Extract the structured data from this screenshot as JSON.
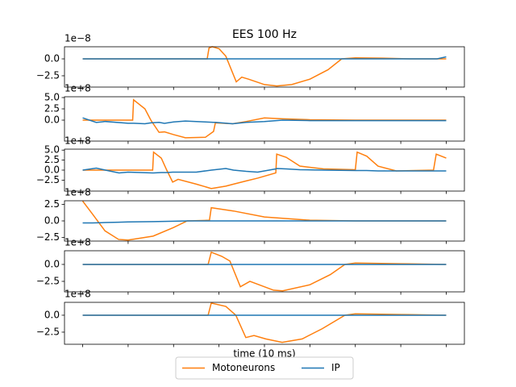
{
  "chart_data": [
    {
      "type": "line",
      "title": "EES 100 Hz",
      "offset_label": "1e−8",
      "x": [
        0,
        5,
        10,
        15,
        20,
        25,
        27.4,
        27.8,
        28.5,
        30,
        31.5,
        33.8,
        35,
        36.5,
        40,
        42.7,
        46,
        50,
        54,
        57,
        60,
        66,
        72,
        78,
        80
      ],
      "series": [
        {
          "name": "Motoneurons",
          "color": "#ff7f0e",
          "values": [
            0,
            0,
            0,
            0,
            0,
            0,
            0,
            1.6,
            1.8,
            1.5,
            0.4,
            -3.4,
            -2.7,
            -3.0,
            -3.8,
            -4.0,
            -3.8,
            -3.0,
            -1.6,
            0,
            0.15,
            0.1,
            0,
            0,
            0
          ]
        },
        {
          "name": "IP",
          "color": "#1f77b4",
          "values": [
            0,
            0,
            0,
            0,
            0,
            0,
            0,
            0,
            0,
            0,
            0,
            0,
            0,
            0,
            0,
            0,
            0,
            0,
            0,
            0,
            0,
            0,
            0,
            0,
            0.3
          ]
        }
      ],
      "xlim": [
        -4,
        84
      ],
      "xticks": [
        0,
        10,
        20,
        30,
        40,
        50,
        60,
        70,
        80
      ],
      "ylim": [
        -4.17,
        1.79
      ],
      "yticks": [
        {
          "value": 0,
          "label": "0.0"
        },
        {
          "value": -2.5,
          "label": "−2.5"
        }
      ]
    },
    {
      "type": "line",
      "offset_label": "1e+8",
      "x": [
        0,
        3,
        5,
        10,
        11,
        11.2,
        13.7,
        15,
        16.8,
        18,
        20,
        22.6,
        27,
        28.8,
        29.2,
        33,
        36,
        40,
        44,
        50,
        60,
        70,
        80
      ],
      "series": [
        {
          "name": "Motoneurons",
          "color": "#ff7f0e",
          "values": [
            0,
            0,
            0,
            0,
            0,
            4.5,
            2.5,
            0,
            -2.7,
            -2.6,
            -3.2,
            -3.9,
            -3.8,
            -2.5,
            -0.6,
            -0.8,
            -0.3,
            0.5,
            0.3,
            0.1,
            0,
            0,
            0
          ]
        },
        {
          "name": "IP",
          "color": "#1f77b4",
          "values": [
            0.5,
            -0.5,
            -0.3,
            -0.7,
            -0.7,
            -0.7,
            -0.8,
            -0.6,
            -0.5,
            -0.7,
            -0.4,
            -0.2,
            -0.4,
            -0.5,
            -0.5,
            -0.8,
            -0.5,
            -0.3,
            0,
            -0.1,
            -0.1,
            -0.1,
            -0.1
          ]
        }
      ],
      "xlim": [
        -4,
        84
      ],
      "xticks": [
        0,
        10,
        20,
        30,
        40,
        50,
        60,
        70,
        80
      ],
      "ylim": [
        -4.64,
        5.18
      ],
      "yticks": [
        {
          "value": 5,
          "label": "5.0"
        },
        {
          "value": 2.5,
          "label": "2.5"
        },
        {
          "value": 0,
          "label": "0.0"
        }
      ]
    },
    {
      "type": "line",
      "offset_label": "1e+8",
      "x": [
        0,
        3,
        5,
        8,
        10,
        15.4,
        15.6,
        17.3,
        18.5,
        19.8,
        21,
        25,
        28.3,
        31.5,
        33.2,
        36,
        38.5,
        42.5,
        42.7,
        44.8,
        47.8,
        53,
        60,
        60.4,
        62.5,
        65,
        69,
        77.2,
        77.8,
        80
      ],
      "series": [
        {
          "name": "Motoneurons",
          "color": "#ff7f0e",
          "values": [
            0,
            0,
            0,
            0,
            0,
            0,
            4.5,
            3,
            0,
            -3,
            -2.3,
            -3.5,
            -4.6,
            -4,
            -3.5,
            -2.7,
            -2,
            -0.7,
            4,
            3.2,
            1,
            0.3,
            0.1,
            4.5,
            3.5,
            1,
            -0.2,
            0,
            4,
            3
          ]
        },
        {
          "name": "IP",
          "color": "#1f77b4",
          "values": [
            0,
            0.5,
            0,
            -0.7,
            -0.5,
            -0.7,
            -0.7,
            -0.6,
            -0.6,
            -0.5,
            -0.5,
            -0.5,
            0,
            0.4,
            0,
            -0.3,
            -0.5,
            0.3,
            0.4,
            0.3,
            0.1,
            0,
            -0.1,
            -0.1,
            -0.1,
            -0.2,
            -0.2,
            -0.2,
            -0.2,
            -0.2
          ]
        }
      ],
      "xlim": [
        -4,
        84
      ],
      "xticks": [
        0,
        10,
        20,
        30,
        40,
        50,
        60,
        70,
        80
      ],
      "ylim": [
        -5.24,
        5.24
      ],
      "yticks": [
        {
          "value": 5,
          "label": "5.0"
        },
        {
          "value": 2.5,
          "label": "2.5"
        },
        {
          "value": 0,
          "label": "0.0"
        },
        {
          "value": -2.5,
          "label": "−2.5"
        }
      ]
    },
    {
      "type": "line",
      "offset_label": "1e+8",
      "x": [
        0,
        2.2,
        4.9,
        7.9,
        10,
        15.5,
        20,
        23,
        27.9,
        28.3,
        33.2,
        40,
        50,
        60,
        70,
        80
      ],
      "series": [
        {
          "name": "Motoneurons",
          "color": "#ff7f0e",
          "values": [
            3,
            1,
            -1.5,
            -2.8,
            -2.9,
            -2.3,
            -1,
            0,
            0.1,
            2,
            1.5,
            0.6,
            0.1,
            0,
            0,
            0
          ]
        },
        {
          "name": "IP",
          "color": "#1f77b4",
          "values": [
            -0.3,
            -0.3,
            -0.25,
            -0.2,
            -0.15,
            -0.1,
            -0.05,
            0,
            0,
            0,
            0,
            0,
            0,
            0,
            0,
            0
          ]
        }
      ],
      "xlim": [
        -4,
        84
      ],
      "xticks": [
        0,
        10,
        20,
        30,
        40,
        50,
        60,
        70,
        80
      ],
      "ylim": [
        -3.05,
        3.05
      ],
      "yticks": [
        {
          "value": 2.5,
          "label": "2.5"
        },
        {
          "value": 0,
          "label": "0.0"
        },
        {
          "value": -2.5,
          "label": "−2.5"
        }
      ]
    },
    {
      "type": "line",
      "offset_label": "1e+8",
      "x": [
        0,
        10,
        20,
        27.6,
        28.3,
        30.6,
        32.4,
        34.7,
        36.8,
        42,
        44,
        50,
        54.5,
        57.7,
        60,
        70,
        80
      ],
      "series": [
        {
          "name": "Motoneurons",
          "color": "#ff7f0e",
          "values": [
            0,
            0,
            0,
            0,
            1.8,
            1.2,
            0.5,
            -3.3,
            -2.5,
            -3.8,
            -3.9,
            -3.0,
            -1.5,
            0,
            0.2,
            0.1,
            0
          ]
        },
        {
          "name": "IP",
          "color": "#1f77b4",
          "values": [
            0,
            0,
            0,
            0,
            0,
            0,
            0,
            0,
            0,
            0,
            0,
            0,
            0,
            0,
            0,
            0,
            0
          ]
        }
      ],
      "xlim": [
        -4,
        84
      ],
      "xticks": [
        0,
        10,
        20,
        30,
        40,
        50,
        60,
        70,
        80
      ],
      "ylim": [
        -4.05,
        2.02
      ],
      "yticks": [
        {
          "value": 0,
          "label": "0.0"
        },
        {
          "value": -2.5,
          "label": "−2.5"
        }
      ]
    },
    {
      "type": "line",
      "offset_label": "1e+8",
      "xlabel": "time (10 ms)",
      "legend": "lower center",
      "x": [
        0,
        10,
        20,
        27.6,
        28.3,
        31.5,
        33.7,
        35.9,
        37.7,
        40.3,
        43.9,
        48.3,
        52.7,
        57.7,
        60,
        70,
        80
      ],
      "series": [
        {
          "name": "Motoneurons",
          "color": "#ff7f0e",
          "values": [
            0,
            0,
            0,
            0,
            1.8,
            1.3,
            0,
            -3.3,
            -3,
            -3.5,
            -4,
            -3.5,
            -2,
            0,
            0.2,
            0.1,
            0
          ]
        },
        {
          "name": "IP",
          "color": "#1f77b4",
          "values": [
            0,
            0,
            0,
            0,
            0,
            0,
            0,
            0,
            0,
            0,
            0,
            0,
            0,
            0,
            0,
            0,
            0
          ]
        }
      ],
      "xlim": [
        -4,
        84
      ],
      "xticks": [
        0,
        10,
        20,
        30,
        40,
        50,
        60,
        70,
        80
      ],
      "ylim": [
        -4.29,
        1.9
      ],
      "yticks": [
        {
          "value": 0,
          "label": "0.0"
        },
        {
          "value": -2.5,
          "label": "−2.5"
        }
      ]
    }
  ]
}
